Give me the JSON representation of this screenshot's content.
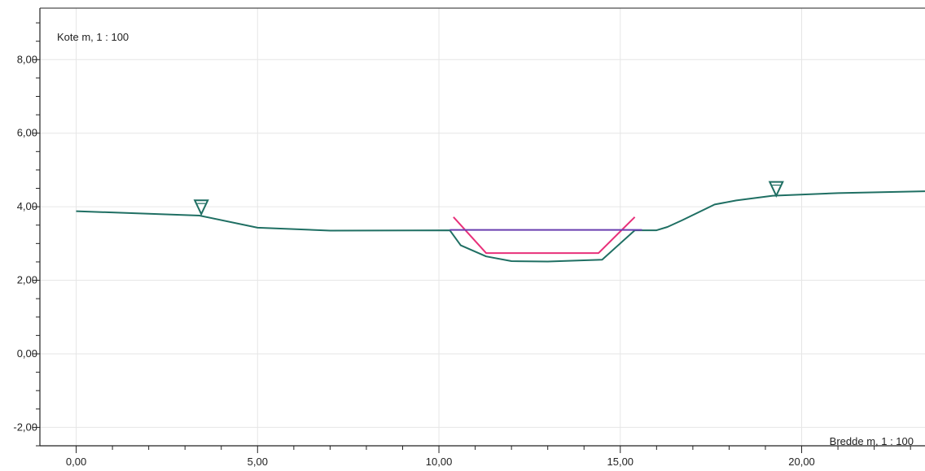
{
  "chart_data": {
    "type": "line",
    "ylabel": "Kote m, 1 : 100",
    "xlabel": "Bredde m, 1 : 100",
    "xlim": [
      -1.0,
      23.4
    ],
    "ylim": [
      -2.5,
      9.4
    ],
    "x_ticks": [
      0,
      5,
      10,
      15,
      20
    ],
    "x_tick_labels": [
      "0,00",
      "5,00",
      "10,00",
      "15,00",
      "20,00"
    ],
    "y_ticks": [
      -2,
      0,
      2,
      4,
      6,
      8
    ],
    "y_tick_labels": [
      "-2,00",
      "0,00",
      "2,00",
      "4,00",
      "6,00",
      "8,00"
    ],
    "grid": true,
    "series": [
      {
        "color": "#1f6f63",
        "points": [
          [
            0.0,
            3.88
          ],
          [
            3.4,
            3.76
          ],
          [
            5.0,
            3.43
          ],
          [
            7.0,
            3.35
          ],
          [
            10.3,
            3.36
          ],
          [
            10.6,
            2.95
          ],
          [
            11.3,
            2.65
          ],
          [
            12.0,
            2.52
          ],
          [
            13.0,
            2.51
          ],
          [
            14.5,
            2.56
          ],
          [
            15.4,
            3.36
          ],
          [
            16.0,
            3.36
          ],
          [
            16.3,
            3.45
          ],
          [
            16.7,
            3.63
          ],
          [
            17.6,
            4.06
          ],
          [
            18.2,
            4.17
          ],
          [
            19.2,
            4.3
          ],
          [
            21.0,
            4.37
          ],
          [
            23.4,
            4.42
          ]
        ]
      },
      {
        "color": "#e8307a",
        "points": [
          [
            10.4,
            3.72
          ],
          [
            11.3,
            2.74
          ],
          [
            14.4,
            2.74
          ],
          [
            15.4,
            3.72
          ]
        ]
      },
      {
        "color": "#6a3fb0",
        "points": [
          [
            10.3,
            3.37
          ],
          [
            15.6,
            3.37
          ]
        ]
      }
    ],
    "markers": [
      {
        "type": "water-level-triangle",
        "x": 3.45,
        "y": 3.8
      },
      {
        "type": "water-level-triangle",
        "x": 19.3,
        "y": 4.3
      }
    ]
  }
}
